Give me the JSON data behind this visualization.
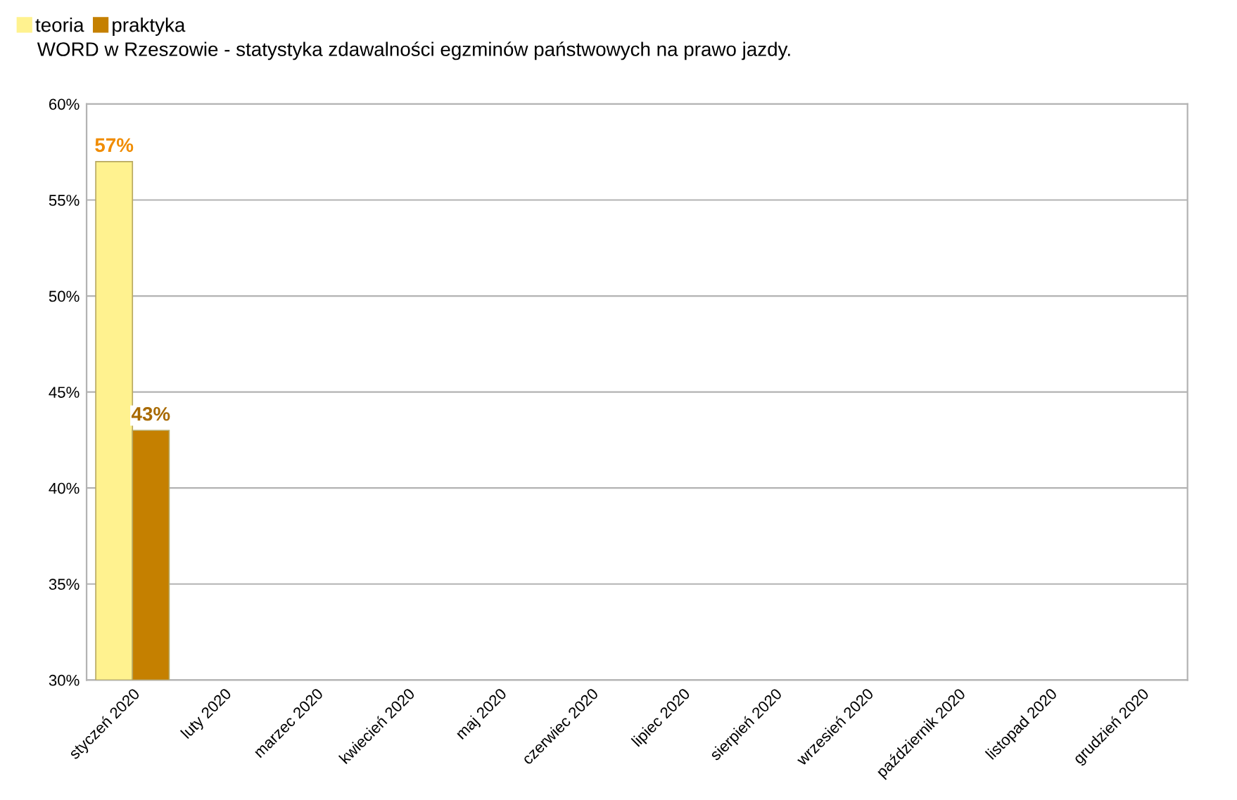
{
  "chart_data": {
    "type": "bar",
    "title": "WORD w Rzeszowie - statystyka zdawalności egzminów państwowych na prawo jazdy.",
    "categories": [
      "styczeń 2020",
      "luty 2020",
      "marzec 2020",
      "kwiecień 2020",
      "maj 2020",
      "czerwiec 2020",
      "lipiec 2020",
      "sierpień 2020",
      "wrzesień 2020",
      "październik 2020",
      "listopad 2020",
      "grudzień 2020"
    ],
    "series": [
      {
        "name": "teoria",
        "color": "#fff28f",
        "values": [
          57,
          null,
          null,
          null,
          null,
          null,
          null,
          null,
          null,
          null,
          null,
          null
        ],
        "value_labels": [
          "57%",
          null,
          null,
          null,
          null,
          null,
          null,
          null,
          null,
          null,
          null,
          null
        ]
      },
      {
        "name": "praktyka",
        "color": "#c58000",
        "values": [
          43,
          null,
          null,
          null,
          null,
          null,
          null,
          null,
          null,
          null,
          null,
          null
        ],
        "value_labels": [
          "43%",
          null,
          null,
          null,
          null,
          null,
          null,
          null,
          null,
          null,
          null,
          null
        ]
      }
    ],
    "ylim": [
      30,
      60
    ],
    "yticks": [
      {
        "value": 30,
        "label": "30%"
      },
      {
        "value": 35,
        "label": "35%"
      },
      {
        "value": 40,
        "label": "40%"
      },
      {
        "value": 45,
        "label": "45%"
      },
      {
        "value": 50,
        "label": "50%"
      },
      {
        "value": 55,
        "label": "55%"
      },
      {
        "value": 60,
        "label": "60%"
      }
    ],
    "grid": "y",
    "legend": "top left"
  }
}
